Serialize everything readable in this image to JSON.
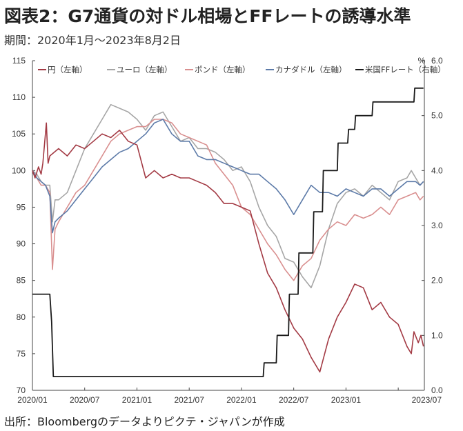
{
  "header": {
    "title": "図表2：G7通貨の対ドル相場とFFレートの誘導水準",
    "period": "期間：2020年1月～2023年8月2日"
  },
  "footer": {
    "source": "出所：Bloombergのデータよりピクテ・ジャパンが作成"
  },
  "chart_data": {
    "type": "line",
    "xlabel": "",
    "ylabel": "",
    "x_ticks": [
      "2020/01",
      "2020/07",
      "2021/01",
      "2021/07",
      "2022/01",
      "2022/07",
      "2023/01",
      "2023/07"
    ],
    "left_axis": {
      "ylim": [
        70,
        115
      ],
      "ticks": [
        "70",
        "75",
        "80",
        "85",
        "90",
        "95",
        "100",
        "105",
        "110",
        "115"
      ]
    },
    "right_axis": {
      "unit": "%",
      "ylim": [
        0,
        6
      ],
      "ticks": [
        "0.0",
        "1.0",
        "2.0",
        "3.0",
        "4.0",
        "5.0",
        "6.0"
      ]
    },
    "grid": false,
    "legend_position": "top",
    "series": [
      {
        "name": "円（左軸）",
        "axis": "left",
        "color": "#a33a44",
        "points": [
          [
            0,
            100
          ],
          [
            0.3,
            99
          ],
          [
            0.7,
            100.5
          ],
          [
            1.0,
            99.5
          ],
          [
            1.2,
            101
          ],
          [
            1.6,
            106.5
          ],
          [
            1.8,
            101
          ],
          [
            2.0,
            102
          ],
          [
            2.5,
            102.5
          ],
          [
            3,
            103
          ],
          [
            4,
            102
          ],
          [
            5,
            103.5
          ],
          [
            6,
            103
          ],
          [
            7,
            104
          ],
          [
            8,
            105
          ],
          [
            9,
            104.5
          ],
          [
            10,
            105.5
          ],
          [
            11,
            104
          ],
          [
            12,
            103.5
          ],
          [
            13,
            99
          ],
          [
            14,
            100
          ],
          [
            15,
            99
          ],
          [
            16,
            99.5
          ],
          [
            17,
            99
          ],
          [
            18,
            99
          ],
          [
            19,
            98.5
          ],
          [
            20,
            98
          ],
          [
            21,
            97
          ],
          [
            22,
            95.5
          ],
          [
            23,
            95.5
          ],
          [
            24,
            95
          ],
          [
            25,
            94.5
          ],
          [
            26,
            90
          ],
          [
            27,
            86
          ],
          [
            28,
            84
          ],
          [
            29,
            81
          ],
          [
            30,
            78.5
          ],
          [
            31,
            77
          ],
          [
            32,
            74.5
          ],
          [
            33,
            72.5
          ],
          [
            34,
            77
          ],
          [
            35,
            80
          ],
          [
            36,
            82
          ],
          [
            37,
            84.5
          ],
          [
            38,
            84
          ],
          [
            39,
            81
          ],
          [
            40,
            82
          ],
          [
            41,
            80
          ],
          [
            42,
            79
          ],
          [
            43,
            76
          ],
          [
            43.5,
            75
          ],
          [
            43.8,
            78
          ],
          [
            44.3,
            76.5
          ],
          [
            44.6,
            77.5
          ],
          [
            44.9,
            76
          ]
        ]
      },
      {
        "name": "ユーロ（左軸）",
        "axis": "left",
        "color": "#a6a6a6",
        "points": [
          [
            0,
            100
          ],
          [
            0.5,
            99.5
          ],
          [
            1,
            98.5
          ],
          [
            1.5,
            98
          ],
          [
            2,
            98
          ],
          [
            2.3,
            93
          ],
          [
            2.6,
            96
          ],
          [
            3,
            96
          ],
          [
            4,
            97
          ],
          [
            5,
            100
          ],
          [
            6,
            103
          ],
          [
            7,
            105
          ],
          [
            8,
            107
          ],
          [
            9,
            109
          ],
          [
            10,
            108.5
          ],
          [
            11,
            108
          ],
          [
            12,
            107
          ],
          [
            13,
            105.5
          ],
          [
            14,
            107.5
          ],
          [
            15,
            108
          ],
          [
            16,
            106
          ],
          [
            17,
            104
          ],
          [
            18,
            104.5
          ],
          [
            19,
            103
          ],
          [
            20,
            103
          ],
          [
            21,
            102.5
          ],
          [
            22,
            101.5
          ],
          [
            23,
            100
          ],
          [
            24,
            100.5
          ],
          [
            25,
            98.5
          ],
          [
            26,
            95
          ],
          [
            27,
            92.5
          ],
          [
            28,
            91
          ],
          [
            29,
            88
          ],
          [
            30,
            87.5
          ],
          [
            31,
            85.5
          ],
          [
            32,
            84
          ],
          [
            33,
            87
          ],
          [
            34,
            92
          ],
          [
            35,
            95.5
          ],
          [
            36,
            97
          ],
          [
            37,
            97.5
          ],
          [
            38,
            96.5
          ],
          [
            39,
            98
          ],
          [
            40,
            97
          ],
          [
            41,
            96
          ],
          [
            42,
            98.5
          ],
          [
            43,
            99
          ],
          [
            43.5,
            100
          ],
          [
            44,
            99
          ],
          [
            44.5,
            98
          ],
          [
            44.9,
            98.5
          ]
        ]
      },
      {
        "name": "ポンド（左軸）",
        "axis": "left",
        "color": "#d98f8f",
        "points": [
          [
            0,
            100
          ],
          [
            0.5,
            99
          ],
          [
            1,
            98
          ],
          [
            1.5,
            98
          ],
          [
            2,
            97
          ],
          [
            2.3,
            86.5
          ],
          [
            2.6,
            92
          ],
          [
            3,
            93
          ],
          [
            4,
            95
          ],
          [
            5,
            97
          ],
          [
            6,
            98
          ],
          [
            7,
            100
          ],
          [
            8,
            102
          ],
          [
            9,
            104
          ],
          [
            10,
            105
          ],
          [
            11,
            105.5
          ],
          [
            12,
            106
          ],
          [
            13,
            106
          ],
          [
            14,
            107
          ],
          [
            15,
            107
          ],
          [
            16,
            106.5
          ],
          [
            17,
            105
          ],
          [
            18,
            104.5
          ],
          [
            19,
            104
          ],
          [
            20,
            103.5
          ],
          [
            21,
            101
          ],
          [
            22,
            99.5
          ],
          [
            23,
            98
          ],
          [
            24,
            95
          ],
          [
            25,
            94
          ],
          [
            26,
            92
          ],
          [
            27,
            90
          ],
          [
            28,
            88.5
          ],
          [
            29,
            86.5
          ],
          [
            30,
            85
          ],
          [
            31,
            87
          ],
          [
            32,
            88
          ],
          [
            33,
            90.5
          ],
          [
            34,
            92
          ],
          [
            35,
            93
          ],
          [
            36,
            92.5
          ],
          [
            37,
            94
          ],
          [
            38,
            93.5
          ],
          [
            39,
            94
          ],
          [
            40,
            95
          ],
          [
            41,
            94
          ],
          [
            42,
            96
          ],
          [
            43,
            96.5
          ],
          [
            44,
            97
          ],
          [
            44.5,
            96
          ],
          [
            44.9,
            96.5
          ]
        ]
      },
      {
        "name": "カナダドル（左軸）",
        "axis": "left",
        "color": "#5c7aa8",
        "points": [
          [
            0,
            100
          ],
          [
            0.5,
            99
          ],
          [
            1,
            98.5
          ],
          [
            1.5,
            98
          ],
          [
            2,
            96.5
          ],
          [
            2.3,
            91.5
          ],
          [
            2.6,
            93
          ],
          [
            3,
            93.5
          ],
          [
            4,
            94.5
          ],
          [
            5,
            96
          ],
          [
            6,
            97.5
          ],
          [
            7,
            99
          ],
          [
            8,
            100.5
          ],
          [
            9,
            101.5
          ],
          [
            10,
            102.5
          ],
          [
            11,
            103
          ],
          [
            12,
            104
          ],
          [
            13,
            105
          ],
          [
            14,
            106.5
          ],
          [
            15,
            107
          ],
          [
            16,
            105
          ],
          [
            17,
            104
          ],
          [
            18,
            104
          ],
          [
            19,
            102
          ],
          [
            20,
            101.5
          ],
          [
            21,
            101.5
          ],
          [
            22,
            101
          ],
          [
            23,
            100.5
          ],
          [
            24,
            100
          ],
          [
            25,
            99.5
          ],
          [
            26,
            99.5
          ],
          [
            27,
            98.5
          ],
          [
            28,
            97.5
          ],
          [
            29,
            96
          ],
          [
            30,
            94
          ],
          [
            31,
            96
          ],
          [
            32,
            98
          ],
          [
            33,
            97
          ],
          [
            34,
            97
          ],
          [
            35,
            96.5
          ],
          [
            36,
            97.5
          ],
          [
            37,
            97
          ],
          [
            38,
            96.5
          ],
          [
            39,
            97.5
          ],
          [
            40,
            97.5
          ],
          [
            41,
            96.5
          ],
          [
            42,
            97.5
          ],
          [
            43,
            98.5
          ],
          [
            44,
            98.5
          ],
          [
            44.5,
            98
          ],
          [
            44.9,
            98.5
          ]
        ]
      },
      {
        "name": "米国FFレート（右軸）",
        "axis": "right",
        "color": "#1a1a1a",
        "step": true,
        "points": [
          [
            0,
            1.75
          ],
          [
            2.0,
            1.75
          ],
          [
            2.2,
            1.25
          ],
          [
            2.4,
            0.25
          ],
          [
            26.5,
            0.25
          ],
          [
            26.6,
            0.5
          ],
          [
            28.0,
            0.5
          ],
          [
            28.1,
            1.0
          ],
          [
            29.4,
            1.0
          ],
          [
            29.5,
            1.75
          ],
          [
            30.5,
            1.75
          ],
          [
            30.6,
            2.5
          ],
          [
            32.2,
            2.5
          ],
          [
            32.3,
            3.25
          ],
          [
            33.3,
            3.25
          ],
          [
            33.4,
            4.0
          ],
          [
            35.0,
            4.0
          ],
          [
            35.1,
            4.5
          ],
          [
            36.2,
            4.5
          ],
          [
            36.3,
            4.75
          ],
          [
            37.0,
            4.75
          ],
          [
            37.1,
            5.0
          ],
          [
            39.0,
            5.0
          ],
          [
            39.1,
            5.25
          ],
          [
            43.8,
            5.25
          ],
          [
            43.9,
            5.5
          ],
          [
            44.9,
            5.5
          ]
        ]
      }
    ]
  }
}
